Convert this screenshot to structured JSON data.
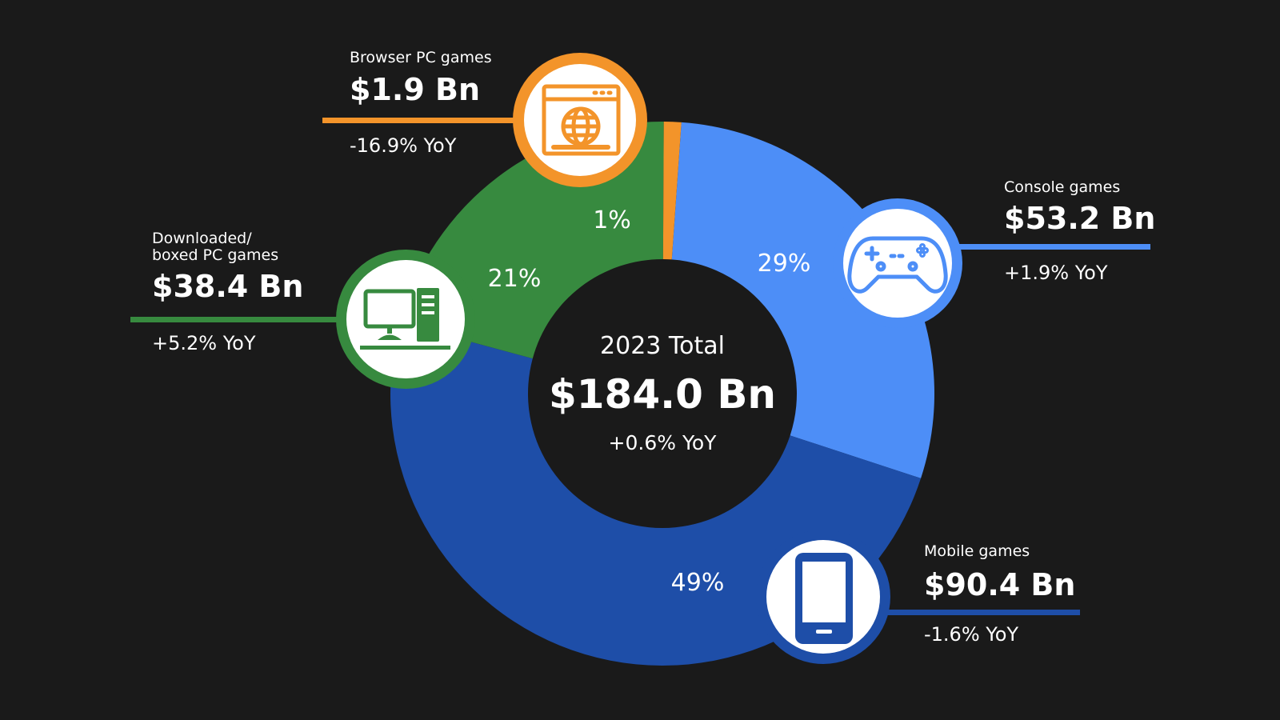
{
  "colors": {
    "background": "#1a1a1a",
    "mobile": "#1e4ea8",
    "console": "#4d8ef7",
    "downloaded": "#378a3f",
    "browser": "#f3942a"
  },
  "center": {
    "caption": "2023 Total",
    "total": "$184.0 Bn",
    "yoy": "+0.6% YoY"
  },
  "chart_data": {
    "type": "pie",
    "title": "",
    "total": 184.0,
    "total_unit": "Bn USD",
    "year": 2023,
    "slices": [
      {
        "name": "Console games",
        "value": 53.2,
        "percent_label": "29%",
        "yoy": "+1.9% YoY",
        "value_label": "$53.2 Bn",
        "color": "#4d8ef7",
        "icon": "gamepad-icon"
      },
      {
        "name": "Mobile games",
        "value": 90.4,
        "percent_label": "49%",
        "yoy": "-1.6% YoY",
        "value_label": "$90.4 Bn",
        "color": "#1e4ea8",
        "icon": "smartphone-icon"
      },
      {
        "name": "Downloaded/ boxed PC games",
        "name_lines": [
          "Downloaded/",
          "boxed PC games"
        ],
        "value": 38.4,
        "percent_label": "21%",
        "yoy": "+5.2% YoY",
        "value_label": "$38.4 Bn",
        "color": "#378a3f",
        "icon": "desktop-computer-icon"
      },
      {
        "name": "Browser PC games",
        "value": 1.9,
        "percent_label": "1%",
        "yoy": "-16.9% YoY",
        "value_label": "$1.9 Bn",
        "color": "#f3942a",
        "icon": "browser-window-icon"
      }
    ]
  }
}
